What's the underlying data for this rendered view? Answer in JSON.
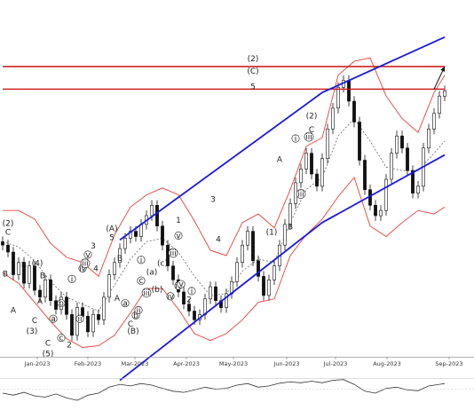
{
  "chart_data": {
    "type": "line",
    "instrument": "",
    "x_axis": {
      "tick_labels": [
        "Jan-2023",
        "Feb-2023",
        "Mar-2023",
        "Apr-2023",
        "May-2023",
        "Jun-2023",
        "Jul-2023",
        "Aug-2023",
        "Sep-2023"
      ]
    },
    "grid": false,
    "legend": "none",
    "colors": {
      "candle": "#111111",
      "bollinger": "#e8403a",
      "moving_average": "#666666",
      "channel": "#1a1ae6",
      "resistance": "#cc1111",
      "arrow": "#111111",
      "rsi": "#333333"
    },
    "series": [
      {
        "kind": "price",
        "close": [
          [
            0.0,
            262
          ],
          [
            1.0,
            258
          ],
          [
            2.0,
            245
          ],
          [
            3.0,
            252
          ],
          [
            4.0,
            240
          ],
          [
            5.0,
            250
          ],
          [
            6.0,
            236
          ],
          [
            7.0,
            232
          ],
          [
            8.0,
            242
          ],
          [
            9.0,
            230
          ],
          [
            10.0,
            225
          ],
          [
            11.0,
            232
          ],
          [
            12.0,
            222
          ],
          [
            13.0,
            210
          ],
          [
            14.0,
            226
          ],
          [
            15.0,
            221
          ],
          [
            16.0,
            212
          ],
          [
            17.0,
            222
          ],
          [
            18.0,
            219
          ],
          [
            19.0,
            232
          ],
          [
            20.0,
            245
          ],
          [
            21.0,
            252
          ],
          [
            22.0,
            260
          ],
          [
            23.0,
            266
          ],
          [
            24.0,
            270
          ],
          [
            25.0,
            267
          ],
          [
            26.0,
            274
          ],
          [
            27.0,
            279
          ],
          [
            28.0,
            285
          ],
          [
            29.0,
            273
          ],
          [
            30.0,
            262
          ],
          [
            31.0,
            250
          ],
          [
            32.0,
            242
          ],
          [
            33.0,
            235
          ],
          [
            34.0,
            228
          ],
          [
            35.0,
            224
          ],
          [
            36.0,
            219
          ],
          [
            37.0,
            222
          ],
          [
            38.0,
            231
          ],
          [
            39.0,
            238
          ],
          [
            40.0,
            230
          ],
          [
            41.0,
            226
          ],
          [
            42.0,
            234
          ],
          [
            43.0,
            241
          ],
          [
            44.0,
            252
          ],
          [
            45.0,
            262
          ],
          [
            46.0,
            270
          ],
          [
            47.0,
            253
          ],
          [
            48.0,
            244
          ],
          [
            49.0,
            233
          ],
          [
            50.0,
            242
          ],
          [
            51.0,
            250
          ],
          [
            52.0,
            262
          ],
          [
            53.0,
            274
          ],
          [
            54.0,
            286
          ],
          [
            55.0,
            298
          ],
          [
            56.0,
            306
          ],
          [
            57.0,
            315
          ],
          [
            58.0,
            303
          ],
          [
            59.0,
            296
          ],
          [
            60.0,
            312
          ],
          [
            61.0,
            329
          ],
          [
            62.0,
            341
          ],
          [
            63.0,
            353
          ],
          [
            64.0,
            357
          ],
          [
            65.0,
            345
          ],
          [
            66.0,
            333
          ],
          [
            67.0,
            311
          ],
          [
            68.0,
            294
          ],
          [
            69.0,
            285
          ],
          [
            70.0,
            279
          ],
          [
            71.0,
            282
          ],
          [
            72.0,
            300
          ],
          [
            73.0,
            315
          ],
          [
            74.0,
            325
          ],
          [
            75.0,
            318
          ],
          [
            76.0,
            305
          ],
          [
            77.0,
            292
          ],
          [
            78.0,
            296
          ],
          [
            79.0,
            318
          ],
          [
            80.0,
            329
          ],
          [
            81.0,
            338
          ],
          [
            82.0,
            348
          ],
          [
            83.0,
            351
          ]
        ]
      },
      {
        "kind": "bollinger_upper",
        "values": [
          [
            0.0,
            282
          ],
          [
            3.0,
            282
          ],
          [
            6.0,
            277
          ],
          [
            9.0,
            263
          ],
          [
            12.0,
            255
          ],
          [
            15.0,
            252
          ],
          [
            18.0,
            244
          ],
          [
            21.0,
            268
          ],
          [
            24.0,
            284
          ],
          [
            27.0,
            291
          ],
          [
            30.0,
            295
          ],
          [
            33.0,
            291
          ],
          [
            36.0,
            276
          ],
          [
            39.0,
            259
          ],
          [
            42.0,
            256
          ],
          [
            45.0,
            275
          ],
          [
            48.0,
            280
          ],
          [
            51.0,
            272
          ],
          [
            54.0,
            294
          ],
          [
            57.0,
            319
          ],
          [
            60.0,
            324
          ],
          [
            63.0,
            360
          ],
          [
            66.0,
            368
          ],
          [
            69.0,
            370
          ],
          [
            72.0,
            348
          ],
          [
            75.0,
            335
          ],
          [
            78.0,
            327
          ],
          [
            81.0,
            350
          ],
          [
            83.0,
            360
          ]
        ]
      },
      {
        "kind": "bollinger_lower",
        "values": [
          [
            0.0,
            246
          ],
          [
            3.0,
            240
          ],
          [
            6.0,
            229
          ],
          [
            9.0,
            218
          ],
          [
            12.0,
            208
          ],
          [
            15.0,
            203
          ],
          [
            18.0,
            204
          ],
          [
            21.0,
            210
          ],
          [
            24.0,
            223
          ],
          [
            27.0,
            237
          ],
          [
            30.0,
            237
          ],
          [
            33.0,
            225
          ],
          [
            36.0,
            211
          ],
          [
            39.0,
            207
          ],
          [
            42.0,
            211
          ],
          [
            45.0,
            219
          ],
          [
            48.0,
            229
          ],
          [
            51.0,
            231
          ],
          [
            54.0,
            256
          ],
          [
            57.0,
            268
          ],
          [
            60.0,
            277
          ],
          [
            63.0,
            290
          ],
          [
            66.0,
            301
          ],
          [
            69.0,
            273
          ],
          [
            72.0,
            267
          ],
          [
            75.0,
            275
          ],
          [
            78.0,
            282
          ],
          [
            81.0,
            280
          ],
          [
            83.0,
            284
          ]
        ]
      },
      {
        "kind": "moving_average",
        "values": [
          [
            0.0,
            264
          ],
          [
            3.0,
            261
          ],
          [
            6.0,
            253
          ],
          [
            9.0,
            241
          ],
          [
            12.0,
            232
          ],
          [
            15.0,
            228
          ],
          [
            18.0,
            224
          ],
          [
            21.0,
            239
          ],
          [
            24.0,
            254
          ],
          [
            27.0,
            264
          ],
          [
            30.0,
            266
          ],
          [
            33.0,
            258
          ],
          [
            36.0,
            244
          ],
          [
            39.0,
            233
          ],
          [
            42.0,
            234
          ],
          [
            45.0,
            247
          ],
          [
            48.0,
            254
          ],
          [
            51.0,
            252
          ],
          [
            54.0,
            275
          ],
          [
            57.0,
            294
          ],
          [
            60.0,
            301
          ],
          [
            63.0,
            325
          ],
          [
            66.0,
            335
          ],
          [
            69.0,
            322
          ],
          [
            72.0,
            307
          ],
          [
            75.0,
            305
          ],
          [
            78.0,
            305
          ],
          [
            81.0,
            315
          ],
          [
            83.0,
            322
          ]
        ]
      },
      {
        "kind": "channel_upper",
        "values": [
          [
            22.0,
            265
          ],
          [
            60.0,
            350
          ],
          [
            83.0,
            382
          ]
        ]
      },
      {
        "kind": "channel_lower",
        "values": [
          [
            22.0,
            184
          ],
          [
            60.0,
            275
          ],
          [
            83.0,
            314
          ]
        ]
      },
      {
        "kind": "resistance",
        "values": [
          [
            0.0,
            365
          ],
          [
            83.0,
            365
          ]
        ]
      },
      {
        "kind": "resistance",
        "values": [
          [
            0.0,
            352
          ],
          [
            83.0,
            352
          ]
        ]
      },
      {
        "kind": "projection",
        "values": [
          [
            81.0,
            352
          ],
          [
            83.0,
            365
          ]
        ]
      },
      {
        "kind": "rsi",
        "values": [
          [
            0.0,
            40
          ],
          [
            2.0,
            35
          ],
          [
            4.0,
            42
          ],
          [
            6.0,
            33
          ],
          [
            8.0,
            30
          ],
          [
            10.0,
            38
          ],
          [
            12.0,
            28
          ],
          [
            14.0,
            22
          ],
          [
            16.0,
            35
          ],
          [
            18.0,
            40
          ],
          [
            20.0,
            55
          ],
          [
            22.0,
            62
          ],
          [
            24.0,
            58
          ],
          [
            26.0,
            64
          ],
          [
            28.0,
            60
          ],
          [
            30.0,
            52
          ],
          [
            32.0,
            45
          ],
          [
            34.0,
            42
          ],
          [
            36.0,
            48
          ],
          [
            38.0,
            55
          ],
          [
            40.0,
            50
          ],
          [
            42.0,
            52
          ],
          [
            44.0,
            60
          ],
          [
            46.0,
            64
          ],
          [
            48.0,
            55
          ],
          [
            50.0,
            58
          ],
          [
            52.0,
            65
          ],
          [
            54.0,
            68
          ],
          [
            56.0,
            66
          ],
          [
            58.0,
            70
          ],
          [
            60.0,
            66
          ],
          [
            62.0,
            72
          ],
          [
            64.0,
            74
          ],
          [
            66.0,
            62
          ],
          [
            68.0,
            45
          ],
          [
            70.0,
            40
          ],
          [
            72.0,
            52
          ],
          [
            74.0,
            55
          ],
          [
            76.0,
            48
          ],
          [
            78.0,
            46
          ],
          [
            80.0,
            58
          ],
          [
            82.0,
            62
          ],
          [
            83.0,
            64
          ]
        ]
      }
    ],
    "wave_labels": [
      {
        "t": "(2)",
        "x": 1.0,
        "y": 273
      },
      {
        "t": "C",
        "x": 1.0,
        "y": 268
      },
      {
        "t": "B",
        "x": 0.5,
        "y": 244
      },
      {
        "t": "A",
        "x": 2.0,
        "y": 223
      },
      {
        "t": "B",
        "x": 4.0,
        "y": 249
      },
      {
        "t": "(4)",
        "x": 6.5,
        "y": 250
      },
      {
        "t": "C",
        "x": 6.0,
        "y": 217
      },
      {
        "t": "(3)",
        "x": 5.5,
        "y": 211
      },
      {
        "t": "B",
        "x": 7.5,
        "y": 243
      },
      {
        "t": "A",
        "x": 7.0,
        "y": 228
      },
      {
        "t": "1",
        "x": 9.0,
        "y": 234
      },
      {
        "t": "C",
        "x": 8.5,
        "y": 204
      },
      {
        "t": "(5)",
        "x": 8.5,
        "y": 198
      },
      {
        "t": "b",
        "x": 11.0,
        "y": 227
      },
      {
        "t": "a",
        "x": 9.5,
        "y": 218
      },
      {
        "t": "c",
        "x": 11.0,
        "y": 207
      },
      {
        "t": "2",
        "x": 12.5,
        "y": 203
      },
      {
        "t": "ii",
        "x": 14.5,
        "y": 218
      },
      {
        "t": "i",
        "x": 13.0,
        "y": 241
      },
      {
        "t": "iv",
        "x": 15.0,
        "y": 247
      },
      {
        "t": "v",
        "x": 16.0,
        "y": 255
      },
      {
        "t": "iii",
        "x": 15.5,
        "y": 250
      },
      {
        "t": "3",
        "x": 17.0,
        "y": 260
      },
      {
        "t": "4",
        "x": 17.5,
        "y": 247
      },
      {
        "t": "(A)",
        "x": 20.5,
        "y": 270
      },
      {
        "t": "5",
        "x": 20.5,
        "y": 265
      },
      {
        "t": "B",
        "x": 22.0,
        "y": 253
      },
      {
        "t": "A",
        "x": 21.5,
        "y": 230
      },
      {
        "t": "C",
        "x": 24.0,
        "y": 215
      },
      {
        "t": "(B)",
        "x": 24.5,
        "y": 211
      },
      {
        "t": "b",
        "x": 25.0,
        "y": 220
      },
      {
        "t": "a",
        "x": 23.0,
        "y": 227
      },
      {
        "t": "c",
        "x": 26.0,
        "y": 240
      },
      {
        "t": "ii",
        "x": 25.5,
        "y": 223
      },
      {
        "t": "i",
        "x": 26.0,
        "y": 252
      },
      {
        "t": "iii",
        "x": 27.0,
        "y": 233
      },
      {
        "t": "(a)",
        "x": 28.0,
        "y": 245
      },
      {
        "t": "(b)",
        "x": 29.0,
        "y": 235
      },
      {
        "t": "(c)",
        "x": 30.0,
        "y": 250
      },
      {
        "t": "iv",
        "x": 31.5,
        "y": 231
      },
      {
        "t": "iii",
        "x": 32.0,
        "y": 256
      },
      {
        "t": "iv",
        "x": 33.0,
        "y": 237
      },
      {
        "t": "v",
        "x": 33.5,
        "y": 238
      },
      {
        "t": "2",
        "x": 35.0,
        "y": 229
      },
      {
        "t": "i",
        "x": 35.5,
        "y": 234
      },
      {
        "t": "1",
        "x": 33.0,
        "y": 275
      },
      {
        "t": "v",
        "x": 33.0,
        "y": 266
      },
      {
        "t": "3",
        "x": 39.5,
        "y": 287
      },
      {
        "t": "4",
        "x": 40.5,
        "y": 264
      },
      {
        "t": "(2)",
        "x": 47.0,
        "y": 368
      },
      {
        "t": "(C)",
        "x": 47.0,
        "y": 361
      },
      {
        "t": "5",
        "x": 47.0,
        "y": 352
      },
      {
        "t": "A",
        "x": 52.0,
        "y": 310
      },
      {
        "t": "(1)",
        "x": 50.5,
        "y": 268
      },
      {
        "t": "B",
        "x": 54.0,
        "y": 271
      },
      {
        "t": "i",
        "x": 55.0,
        "y": 322
      },
      {
        "t": "iii",
        "x": 56.0,
        "y": 290
      },
      {
        "t": "iii",
        "x": 57.5,
        "y": 323
      },
      {
        "t": "C",
        "x": 58.0,
        "y": 327
      },
      {
        "t": "(2)",
        "x": 58.0,
        "y": 335
      }
    ]
  }
}
